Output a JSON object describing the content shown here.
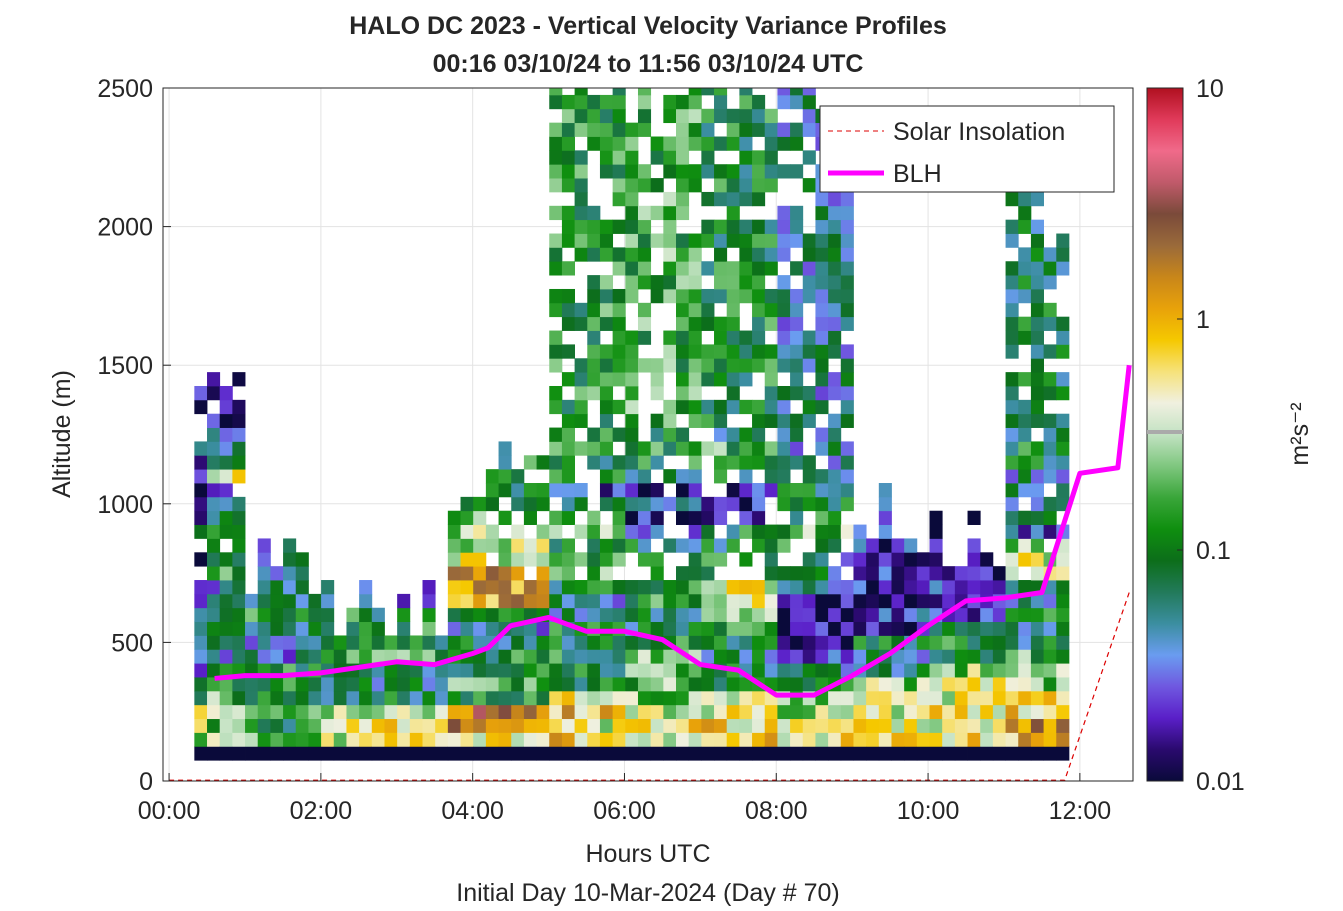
{
  "chart_data": {
    "type": "heatmap",
    "title": "HALO DC 2023 - Vertical Velocity Variance Profiles",
    "subtitle": "00:16 03/10/24 to 11:56 03/10/24  UTC",
    "xlabel": "Hours UTC",
    "xlabel2": "Initial Day 10-Mar-2024 (Day # 70)",
    "ylabel": "Altitude (m)",
    "xlim_hours": [
      -0.08,
      12.7
    ],
    "ylim": [
      0,
      2500
    ],
    "x_ticks": [
      {
        "value": 0,
        "label": "00:00"
      },
      {
        "value": 2,
        "label": "02:00"
      },
      {
        "value": 4,
        "label": "04:00"
      },
      {
        "value": 6,
        "label": "06:00"
      },
      {
        "value": 8,
        "label": "08:00"
      },
      {
        "value": 10,
        "label": "10:00"
      },
      {
        "value": 12,
        "label": "12:00"
      }
    ],
    "y_ticks": [
      {
        "value": 0,
        "label": "0"
      },
      {
        "value": 500,
        "label": "500"
      },
      {
        "value": 1000,
        "label": "1000"
      },
      {
        "value": 1500,
        "label": "1500"
      },
      {
        "value": 2000,
        "label": "2000"
      },
      {
        "value": 2500,
        "label": "2500"
      }
    ],
    "grid": true,
    "colorbar": {
      "scale": "log",
      "range": [
        0.01,
        10
      ],
      "unit_label": "m²s⁻²",
      "ticks": [
        {
          "value": 0.01,
          "label": "0.01"
        },
        {
          "value": 0.1,
          "label": "0.1"
        },
        {
          "value": 1,
          "label": "1"
        },
        {
          "value": 10,
          "label": "10"
        }
      ],
      "colors": [
        "#0a0a3a",
        "#2a0a6e",
        "#5a1fc8",
        "#6f58e0",
        "#6a9cf0",
        "#3b8ea0",
        "#227a5a",
        "#0c6e1a",
        "#0f8f0f",
        "#3aa63a",
        "#7fc77f",
        "#c2e2c2",
        "#f0f0e0",
        "#f6e27a",
        "#f5c800",
        "#e8a20a",
        "#c8861a",
        "#9a6a3a",
        "#7a4a3a",
        "#c05a6a",
        "#f06a8a",
        "#e03a5a",
        "#b01020"
      ]
    },
    "legend": {
      "position": "top-right",
      "entries": [
        {
          "label": "Solar Insolation",
          "style": "dashed",
          "color": "#dd0000"
        },
        {
          "label": "BLH",
          "style": "solid",
          "color": "#ff00ff"
        }
      ]
    },
    "series": [
      {
        "name": "BLH",
        "x": [
          0.6,
          1.0,
          1.5,
          2.0,
          2.5,
          3.0,
          3.5,
          4.0,
          4.2,
          4.5,
          5.0,
          5.5,
          6.0,
          6.5,
          7.0,
          7.5,
          8.0,
          8.5,
          9.0,
          9.5,
          10.0,
          10.5,
          11.0,
          11.5,
          12.0,
          12.5,
          12.65
        ],
        "y": [
          370,
          380,
          380,
          390,
          410,
          430,
          420,
          460,
          480,
          560,
          590,
          540,
          540,
          510,
          420,
          400,
          310,
          310,
          380,
          460,
          560,
          650,
          660,
          680,
          1110,
          1130,
          1500
        ]
      },
      {
        "name": "Solar Insolation",
        "x": [
          0.0,
          11.8,
          12.65
        ],
        "y": [
          3,
          3,
          680
        ]
      }
    ],
    "heatmap": {
      "x_start_hour": 0.333,
      "bin_hours": 0.167,
      "n_cols": 69,
      "z_start_m": 75,
      "bin_m": 50,
      "value_scale": "log10 of variance",
      "cells_note": "columns listed at 0.5-h resolution of displayed structure",
      "columns": [
        {
          "x": 0.33,
          "top": 1350,
          "vals": [
            -2.0,
            -0.7,
            -0.3,
            -0.5,
            -1.3,
            -1.2,
            -1.5,
            -1.7,
            -1.5,
            -1.5,
            -1.5,
            -1.6,
            -1.9,
            -1.7,
            -1.9,
            -1.3,
            -1.3,
            -1.6,
            -2.0,
            -1.9,
            -1.9,
            -1.8,
            -1.5,
            -1.8,
            -1.4,
            -1.9
          ]
        },
        {
          "x": 0.83,
          "top": 1450,
          "vals": [
            -2.0,
            -0.5,
            -0.8,
            -0.3,
            -0.7,
            -1.0,
            -0.9,
            -1.3,
            -1.3,
            -1.1,
            -1.0,
            -1.3,
            -1.4,
            -0.8,
            -1.0,
            -0.9,
            -1.1,
            -1.0,
            -1.1,
            -1.4,
            -0.4,
            -1.0,
            -1.3,
            -1.5,
            -1.7,
            -1.8,
            -1.9
          ]
        },
        {
          "x": 1.33,
          "top": 750,
          "vals": [
            -2.0,
            -0.7,
            -1.0,
            -0.8,
            -1.1,
            -1.0,
            -1.0,
            -1.4,
            -1.5,
            -1.1,
            -0.9,
            -1.3,
            -1.3,
            -1.5,
            -1.3
          ]
        },
        {
          "x": 2.83,
          "top": 600,
          "vals": [
            -2.0,
            -0.4,
            -0.2,
            -0.5,
            -1.1,
            -1.2,
            -1.1,
            -0.8,
            -1.1,
            -0.9,
            -1.0,
            -1.5
          ]
        },
        {
          "x": 4.5,
          "top": 1050,
          "vals": [
            -2.0,
            -0.2,
            0.2,
            0.3,
            -0.9,
            -0.8,
            -1.0,
            -1.0,
            -1.1,
            -1.5,
            -0.8,
            0.1,
            0.1,
            0.1,
            -0.4,
            -0.5,
            -0.5,
            -0.8,
            -1.2,
            -1.0
          ]
        },
        {
          "x": 5.5,
          "top": 2500,
          "vals": [
            -2.0,
            -0.1,
            -0.4,
            -0.1,
            -0.3,
            -1.0,
            -1.0,
            -1.0,
            -1.1,
            -1.0,
            -1.2,
            -1.3,
            -1.1,
            -0.8,
            -0.9,
            -1.1,
            -0.6,
            -0.9,
            -1.0,
            -1.6,
            -0.8,
            -1.1,
            -0.9,
            -1.0,
            -1.1,
            -0.9
          ]
        },
        {
          "x": 6.5,
          "top": 2500,
          "vals": [
            -2.0,
            -0.3,
            -0.3,
            -0.5,
            -0.6,
            -0.7,
            -0.8,
            -0.7,
            -1.0,
            -1.1,
            -1.1,
            -0.9,
            -1.0,
            -1.0,
            -1.1,
            -1.1,
            -1.4,
            -1.8,
            -1.5,
            -1.9,
            -1.1,
            -1.0,
            -0.9,
            -1.1,
            -0.8
          ]
        },
        {
          "x": 7.5,
          "top": 2500,
          "vals": [
            -2.0,
            -0.2,
            -0.2,
            -0.3,
            -0.5,
            -0.9,
            -1.1,
            -1.2,
            -1.1,
            -0.8,
            -0.4,
            -0.4,
            -0.3,
            -1.0,
            -1.0,
            -1.1,
            -1.0,
            -1.7,
            -1.8,
            -1.7,
            -1.1,
            -1.0,
            -0.8,
            -1.2,
            -1.0
          ]
        },
        {
          "x": 8.5,
          "top": 2500,
          "vals": [
            -2.0,
            -0.3,
            -0.3,
            -0.5,
            -0.6,
            -1.1,
            -1.2,
            -1.6,
            -1.9,
            -1.9,
            -2.0,
            -1.9,
            -1.3,
            -1.2,
            -1.3,
            -0.9,
            -0.7,
            -1.0,
            -1.0,
            -1.1,
            -1.3
          ]
        },
        {
          "x": 9.5,
          "top": 900,
          "vals": [
            -2.0,
            -0.2,
            -0.3,
            -0.4,
            -0.5,
            -0.6,
            -1.2,
            -1.3,
            -1.1,
            -1.9,
            -1.6,
            -2.0,
            -1.7
          ]
        },
        {
          "x": 10.5,
          "top": 800,
          "vals": [
            -2.0,
            -0.2,
            -0.3,
            -0.2,
            -0.4,
            -0.4,
            -0.6,
            -1.2,
            -1.0,
            -1.2,
            -1.6,
            -1.6,
            -1.6,
            -1.9
          ]
        },
        {
          "x": 11.5,
          "top": 2050,
          "vals": [
            -2.0,
            0.0,
            0.1,
            -0.2,
            -0.3,
            -0.6,
            -0.7,
            -0.8,
            -1.1,
            -1.3,
            -1.0,
            -1.2,
            -1.3,
            -0.2,
            -0.4,
            -0.7,
            -1.5,
            -1.1,
            -1.2,
            -1.2,
            -1.3,
            -1.1,
            -1.0,
            -1.2,
            -1.2,
            -1.1
          ]
        }
      ]
    }
  }
}
